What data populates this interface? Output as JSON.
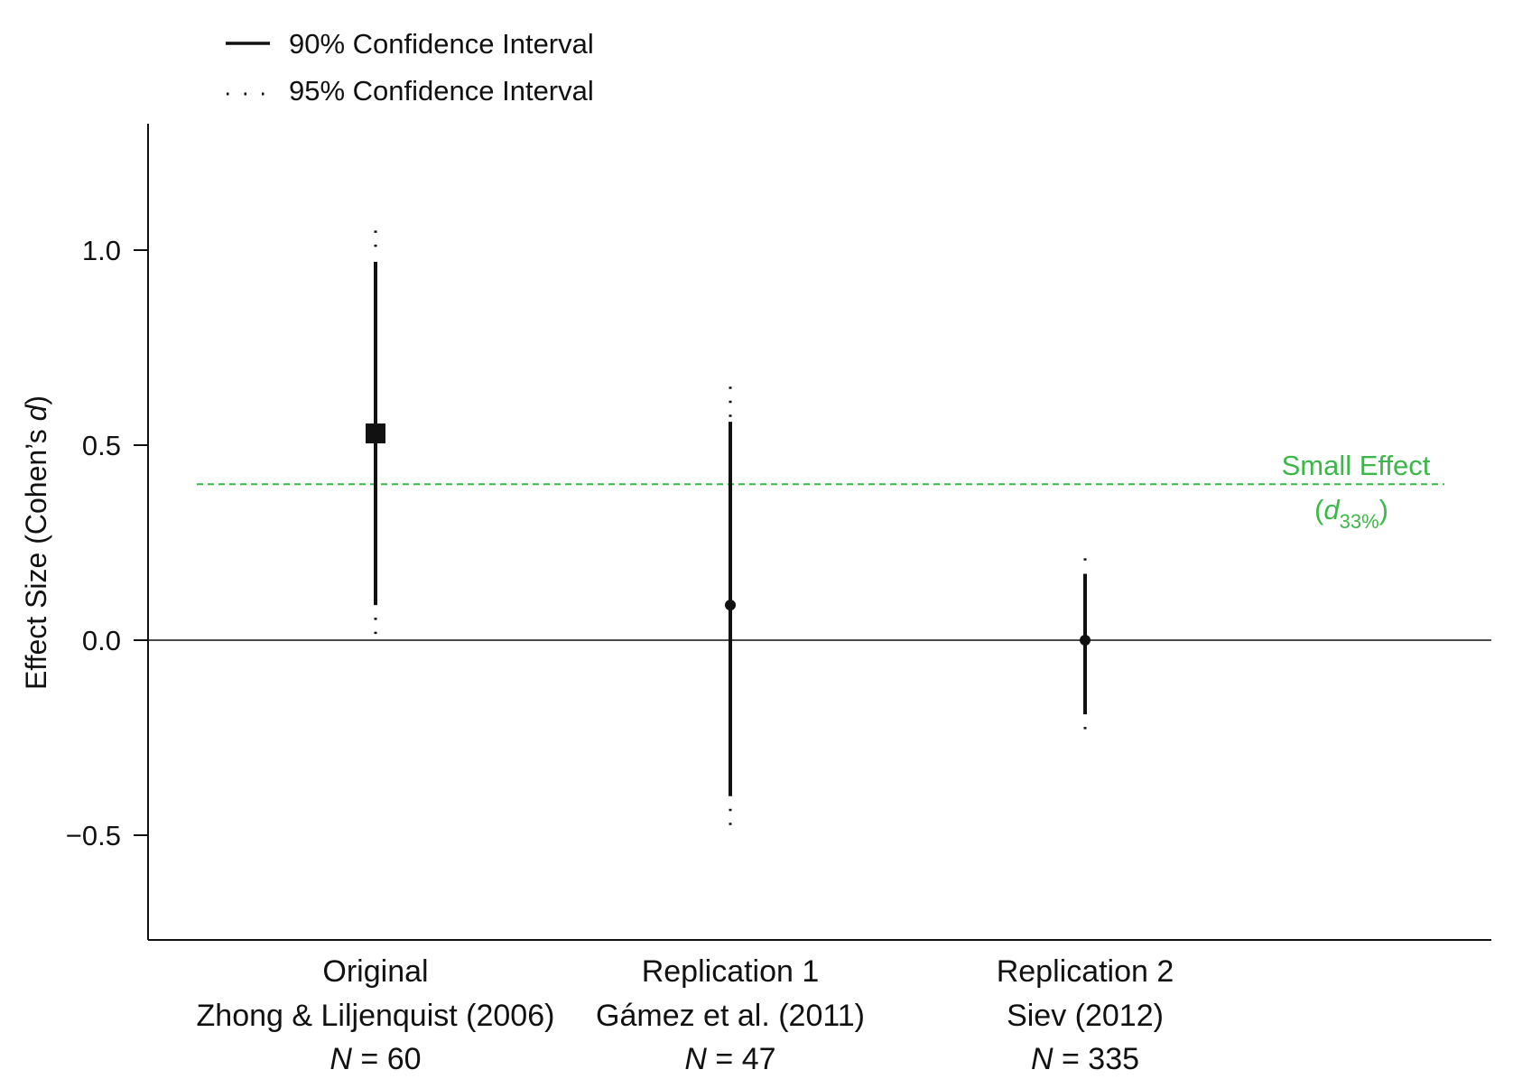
{
  "chart_data": {
    "type": "scatter",
    "ylabel_main": "Effect Size (Cohen’s ",
    "ylabel_italic": "d",
    "ylabel_close": ")",
    "ylim": [
      -0.77,
      1.32
    ],
    "yticks": [
      1.0,
      0.5,
      0.0,
      -0.5
    ],
    "ytick_labels": [
      "1.0",
      "0.5",
      "0.0",
      "−0.5"
    ],
    "legend": {
      "placement": "top-left",
      "entries": [
        {
          "label": "90% Confidence Interval",
          "style": "solid"
        },
        {
          "label": "95% Confidence Interval",
          "style": "dotted"
        }
      ]
    },
    "reference_line": {
      "y": 0.4,
      "color": "#3cb84a",
      "label": "Small Effect",
      "sub_open": "(",
      "sub_italic": "d",
      "sub_subscript": "33%",
      "sub_close": ")"
    },
    "zero_line": 0.0,
    "studies": [
      {
        "group": "Original",
        "citation": "Zhong & Liljenquist (2006)",
        "n_italic": "N",
        "n_rest": " = 60",
        "estimate": 0.53,
        "ci90": [
          0.09,
          0.97
        ],
        "ci95": [
          0.01,
          1.05
        ],
        "marker": "square"
      },
      {
        "group": "Replication 1",
        "citation": "Gámez et al. (2011)",
        "n_italic": "N",
        "n_rest": " = 47",
        "estimate": 0.09,
        "ci90": [
          -0.4,
          0.56
        ],
        "ci95": [
          -0.49,
          0.65
        ],
        "marker": "circle"
      },
      {
        "group": "Replication 2",
        "citation": "Siev (2012)",
        "n_italic": "N",
        "n_rest": " = 335",
        "estimate": 0.0,
        "ci90": [
          -0.19,
          0.17
        ],
        "ci95": [
          -0.23,
          0.21
        ],
        "marker": "circle"
      }
    ]
  }
}
